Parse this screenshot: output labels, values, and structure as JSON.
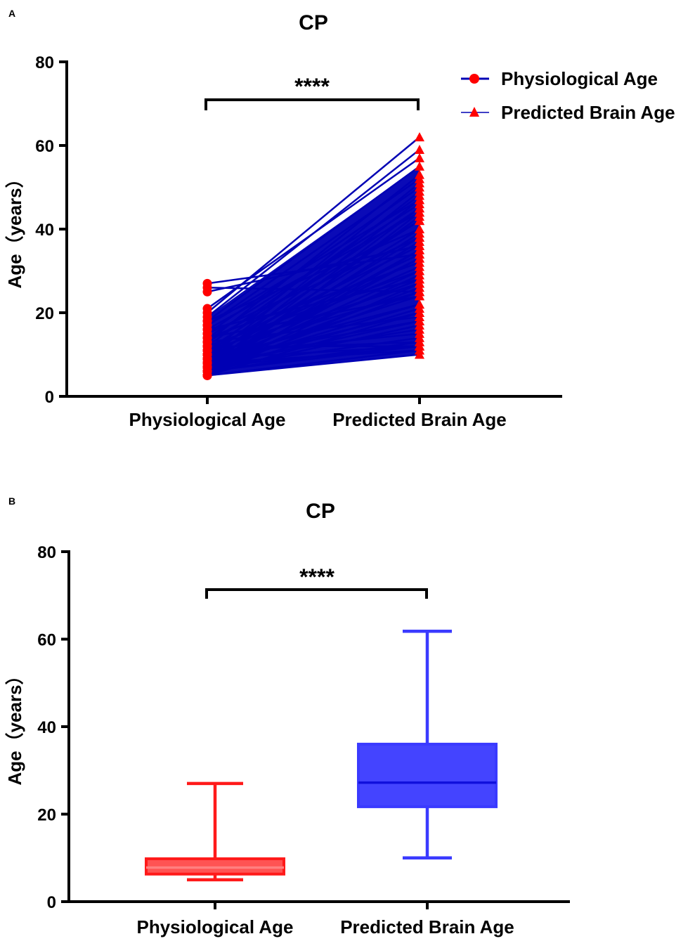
{
  "chart_data": [
    {
      "panel_label": "A",
      "type": "line",
      "title": "CP",
      "ylabel": "Age（years）",
      "xlabel": "",
      "categories": [
        "Physiological Age",
        "Predicted Brain Age"
      ],
      "ylim": [
        0,
        80
      ],
      "yticks": [
        0,
        20,
        40,
        60,
        80
      ],
      "significance": "****",
      "legend": {
        "position": "top-right",
        "entries": [
          {
            "label": "Physiological Age",
            "marker": "circle",
            "line_color": "#0000b4",
            "marker_color": "#ff0000"
          },
          {
            "label": "Predicted Brain Age",
            "marker": "triangle",
            "line_color": "#0000b4",
            "marker_color": "#ff0000"
          }
        ]
      },
      "series_note": "paired subjects: physiological age -> predicted brain age",
      "pairs": [
        [
          27,
          34
        ],
        [
          26,
          25
        ],
        [
          25,
          36
        ],
        [
          21,
          57
        ],
        [
          20,
          62
        ],
        [
          19,
          59
        ],
        [
          18,
          55
        ],
        [
          18,
          40
        ],
        [
          17,
          47
        ],
        [
          17,
          52
        ],
        [
          16,
          44
        ],
        [
          15,
          50
        ],
        [
          15,
          38
        ],
        [
          14,
          46
        ],
        [
          14,
          32
        ],
        [
          13,
          53
        ],
        [
          13,
          42
        ],
        [
          12,
          48
        ],
        [
          12,
          30
        ],
        [
          11,
          45
        ],
        [
          11,
          36
        ],
        [
          11,
          27
        ],
        [
          10,
          51
        ],
        [
          10,
          42
        ],
        [
          10,
          34
        ],
        [
          10,
          25
        ],
        [
          9,
          49
        ],
        [
          9,
          40
        ],
        [
          9,
          31
        ],
        [
          9,
          22
        ],
        [
          9,
          18
        ],
        [
          8,
          47
        ],
        [
          8,
          38
        ],
        [
          8,
          33
        ],
        [
          8,
          28
        ],
        [
          8,
          24
        ],
        [
          8,
          20
        ],
        [
          8,
          16
        ],
        [
          7,
          45
        ],
        [
          7,
          39
        ],
        [
          7,
          35
        ],
        [
          7,
          30
        ],
        [
          7,
          26
        ],
        [
          7,
          22
        ],
        [
          7,
          18
        ],
        [
          7,
          14
        ],
        [
          6,
          43
        ],
        [
          6,
          37
        ],
        [
          6,
          33
        ],
        [
          6,
          29
        ],
        [
          6,
          25
        ],
        [
          6,
          21
        ],
        [
          6,
          17
        ],
        [
          6,
          13
        ],
        [
          5,
          11
        ],
        [
          5,
          10
        ],
        [
          5,
          44
        ],
        [
          5,
          35
        ],
        [
          5,
          27
        ],
        [
          5,
          20
        ],
        [
          12,
          12
        ],
        [
          11,
          13
        ],
        [
          10,
          15
        ],
        [
          9,
          12
        ],
        [
          8,
          11
        ],
        [
          13,
          19
        ],
        [
          14,
          24
        ],
        [
          16,
          28
        ],
        [
          6,
          12
        ],
        [
          7,
          12
        ]
      ]
    },
    {
      "panel_label": "B",
      "type": "box",
      "title": "CP",
      "ylabel": "Age（years）",
      "xlabel": "",
      "categories": [
        "Physiological Age",
        "Predicted Brain Age"
      ],
      "ylim": [
        0,
        80
      ],
      "yticks": [
        0,
        20,
        40,
        60,
        80
      ],
      "significance": "****",
      "boxes": [
        {
          "name": "Physiological Age",
          "min": 5,
          "q1": 6.3,
          "median": 7.8,
          "q3": 9.8,
          "max": 27,
          "color": "#ff1a1a"
        },
        {
          "name": "Predicted Brain Age",
          "min": 10,
          "q1": 21.7,
          "median": 27.2,
          "q3": 36,
          "max": 61.8,
          "color": "#3a3aff"
        }
      ]
    }
  ]
}
